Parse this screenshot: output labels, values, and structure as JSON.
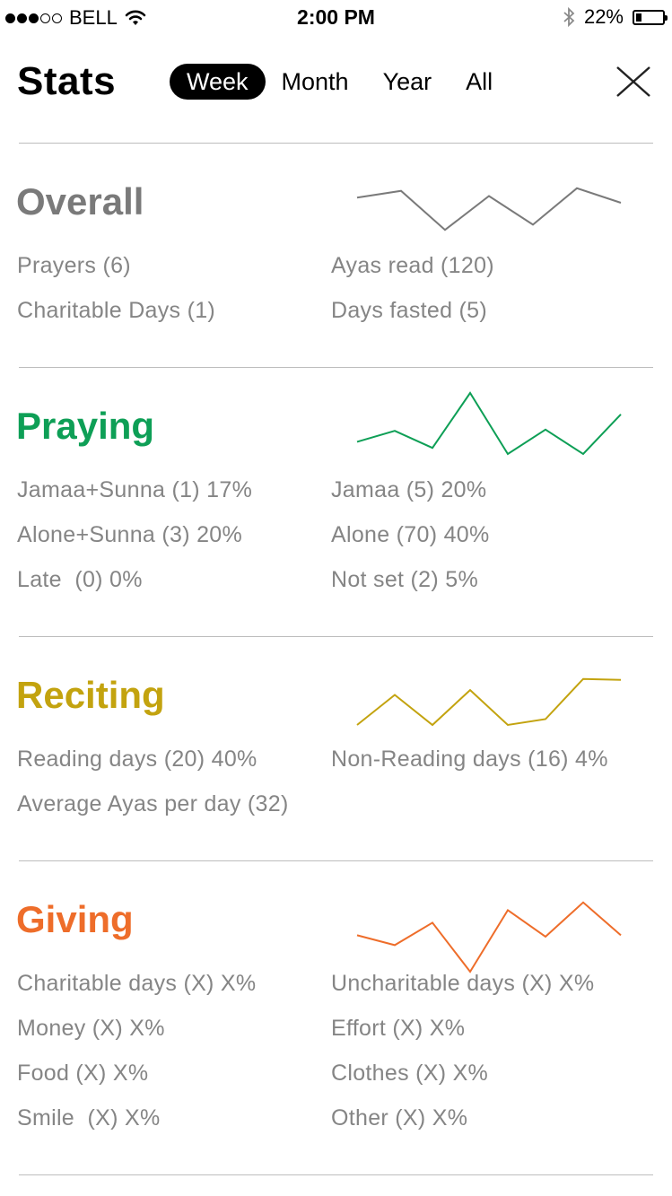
{
  "status_bar": {
    "carrier": "BELL",
    "time": "2:00 PM",
    "battery": "22%",
    "battery_level": 0.22
  },
  "header": {
    "title": "Stats",
    "tabs": [
      {
        "label": "Week",
        "active": true
      },
      {
        "label": "Month",
        "active": false
      },
      {
        "label": "Year",
        "active": false
      },
      {
        "label": "All",
        "active": false
      }
    ]
  },
  "sections": {
    "overall": {
      "title": "Overall",
      "color": "#7a7a7a",
      "left": [
        "Prayers (6)",
        "Charitable Days (1)"
      ],
      "right": [
        "Ayas read (120)",
        "Days fasted (5)"
      ],
      "trend": [
        0.72,
        0.85,
        0.1,
        0.75,
        0.2,
        0.9,
        0.62
      ]
    },
    "praying": {
      "title": "Praying",
      "color": "#0e9f56",
      "left": [
        "Jamaa+Sunna (1) 17%",
        "Alone+Sunna (3) 20%",
        "Late  (0) 0%"
      ],
      "right": [
        "Jamaa (5) 20%",
        "Alone (70) 40%",
        "Not set (2) 5%"
      ],
      "trend": [
        0.2,
        0.38,
        0.1,
        1.0,
        0.0,
        0.4,
        0.0,
        0.65
      ]
    },
    "reciting": {
      "title": "Reciting",
      "color": "#c3a30f",
      "left": [
        "Reading days (20) 40%",
        "Average Ayas per day (32)"
      ],
      "right": [
        "Non-Reading days (16) 4%"
      ],
      "trend": [
        0.0,
        0.62,
        0.0,
        0.72,
        0.0,
        0.12,
        0.95,
        0.93
      ]
    },
    "giving": {
      "title": "Giving",
      "color": "#ee6d2a",
      "left": [
        "Charitable days (X) X%",
        "Money (X) X%",
        "Food (X) X%",
        "Smile  (X) X%"
      ],
      "right": [
        "Uncharitable days (X) X%",
        "Effort (X) X%",
        "Clothes (X) X%",
        "Other (X) X%"
      ],
      "trend": [
        0.52,
        0.38,
        0.7,
        0.0,
        0.88,
        0.5,
        0.99,
        0.52
      ]
    }
  }
}
